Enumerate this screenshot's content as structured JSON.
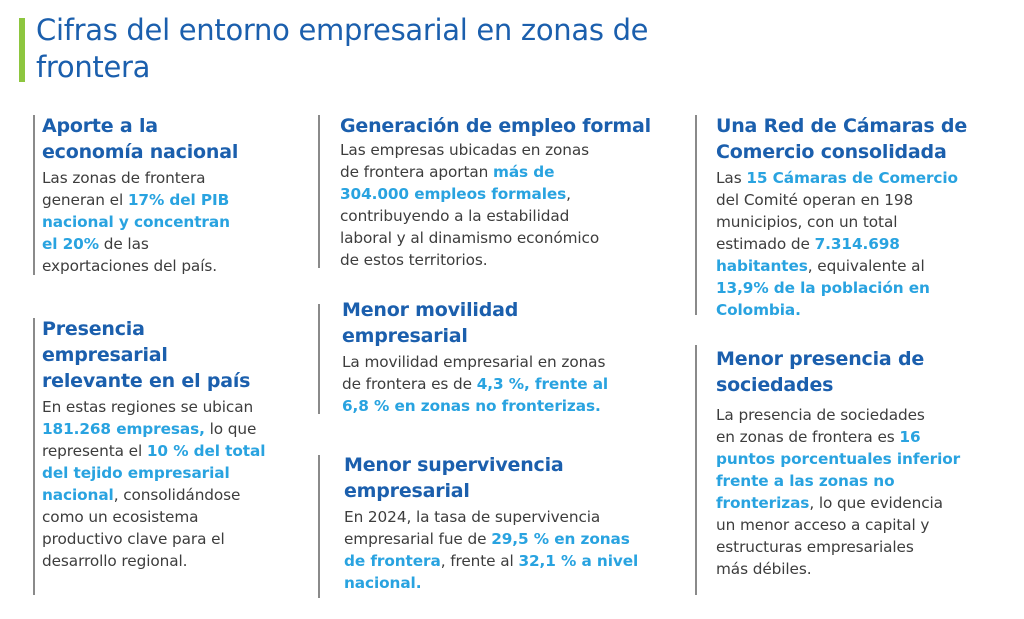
{
  "title": "Cifras del entorno empresarial en zonas de\nfrontera",
  "colors": {
    "heading": "#1b5fad",
    "highlight": "#29a3e0",
    "accent_bar": "#8dc63f",
    "body": "#3d3d3d"
  },
  "sections": [
    {
      "heading": "Aporte a la\neconomía nacional",
      "body": [
        {
          "t": "Las zonas de frontera\ngeneran el ",
          "hl": false
        },
        {
          "t": "17% del PIB\nnacional y concentran\nel 20%",
          "hl": true
        },
        {
          "t": " de las\nexportaciones del país.",
          "hl": false
        }
      ]
    },
    {
      "heading": "Presencia\nempresarial\nrelevante en el país",
      "body": [
        {
          "t": "En estas regiones se ubican\n",
          "hl": false
        },
        {
          "t": "181.268 empresas,",
          "hl": true
        },
        {
          "t": " lo que\nrepresenta el ",
          "hl": false
        },
        {
          "t": "10 % del total\ndel tejido empresarial\nnacional",
          "hl": true
        },
        {
          "t": ", consolidándose\ncomo un ecosistema\nproductivo clave para el\ndesarrollo regional.",
          "hl": false
        }
      ]
    },
    {
      "heading": "Generación de empleo formal",
      "body": [
        {
          "t": "Las empresas ubicadas en zonas\nde frontera aportan ",
          "hl": false
        },
        {
          "t": "más de\n304.000 empleos formales",
          "hl": true
        },
        {
          "t": ",\ncontribuyendo a la estabilidad\nlaboral y al dinamismo económico\nde estos territorios.",
          "hl": false
        }
      ]
    },
    {
      "heading": "Menor movilidad\nempresarial",
      "body": [
        {
          "t": "La movilidad empresarial en zonas\nde frontera es de ",
          "hl": false
        },
        {
          "t": "4,3 %, frente al\n6,8 % en zonas no fronterizas.",
          "hl": true
        }
      ]
    },
    {
      "heading": "Menor supervivencia\nempresarial",
      "body": [
        {
          "t": "En 2024, la tasa de supervivencia\nempresarial fue de ",
          "hl": false
        },
        {
          "t": "29,5 % en zonas\nde frontera",
          "hl": true
        },
        {
          "t": ", frente al ",
          "hl": false
        },
        {
          "t": "32,1 % a nivel\nnacional.",
          "hl": true
        }
      ]
    },
    {
      "heading": "Una Red de Cámaras de\nComercio consolidada",
      "body": [
        {
          "t": "Las ",
          "hl": false
        },
        {
          "t": "15 Cámaras de Comercio",
          "hl": true
        },
        {
          "t": "\ndel Comité operan en 198\nmunicipios, con un total\nestimado de ",
          "hl": false
        },
        {
          "t": "7.314.698\nhabitantes",
          "hl": true
        },
        {
          "t": ", equivalente al\n",
          "hl": false
        },
        {
          "t": "13,9% de la población en\nColombia.",
          "hl": true
        }
      ]
    },
    {
      "heading": "Menor presencia de\nsociedades",
      "body": [
        {
          "t": "La presencia de sociedades\nen zonas de frontera es ",
          "hl": false
        },
        {
          "t": "16\npuntos porcentuales inferior\nfrente a las zonas no\nfronterizas",
          "hl": true
        },
        {
          "t": ", lo que evidencia\nun menor acceso a capital y\nestructuras empresariales\nmás débiles.",
          "hl": false
        }
      ]
    }
  ]
}
